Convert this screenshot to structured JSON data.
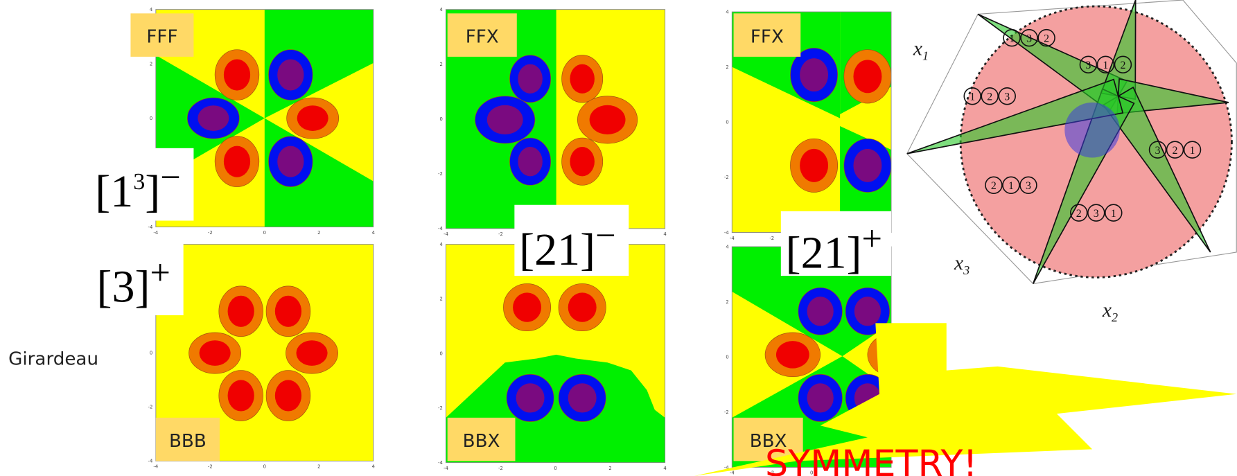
{
  "panels": [
    {
      "label": "FFF"
    },
    {
      "label": "FFX"
    },
    {
      "label": "FFX"
    },
    {
      "label": "BBB"
    },
    {
      "label": "BBX"
    },
    {
      "label": "BBX"
    }
  ],
  "axis_ticks": [
    "-4",
    "-2",
    "0",
    "2",
    "4"
  ],
  "symmetry_labels": [
    {
      "main": "[1",
      "exponent": "3",
      "close": "]",
      "sign": "−"
    },
    {
      "main": "[21]",
      "sign": "−"
    },
    {
      "main": "[21]",
      "sign": "+"
    },
    {
      "main": "[3]",
      "sign": "+"
    }
  ],
  "row_label": "Girardeau",
  "axes": [
    {
      "name": "x",
      "index": "1"
    },
    {
      "name": "x",
      "index": "3"
    },
    {
      "name": "x",
      "index": "2"
    }
  ],
  "permutations": [
    [
      "1",
      "3",
      "2"
    ],
    [
      "3",
      "1",
      "2"
    ],
    [
      "1",
      "2",
      "3"
    ],
    [
      "3",
      "2",
      "1"
    ],
    [
      "2",
      "1",
      "3"
    ],
    [
      "2",
      "3",
      "1"
    ]
  ],
  "banner": "SYMMETRY!"
}
